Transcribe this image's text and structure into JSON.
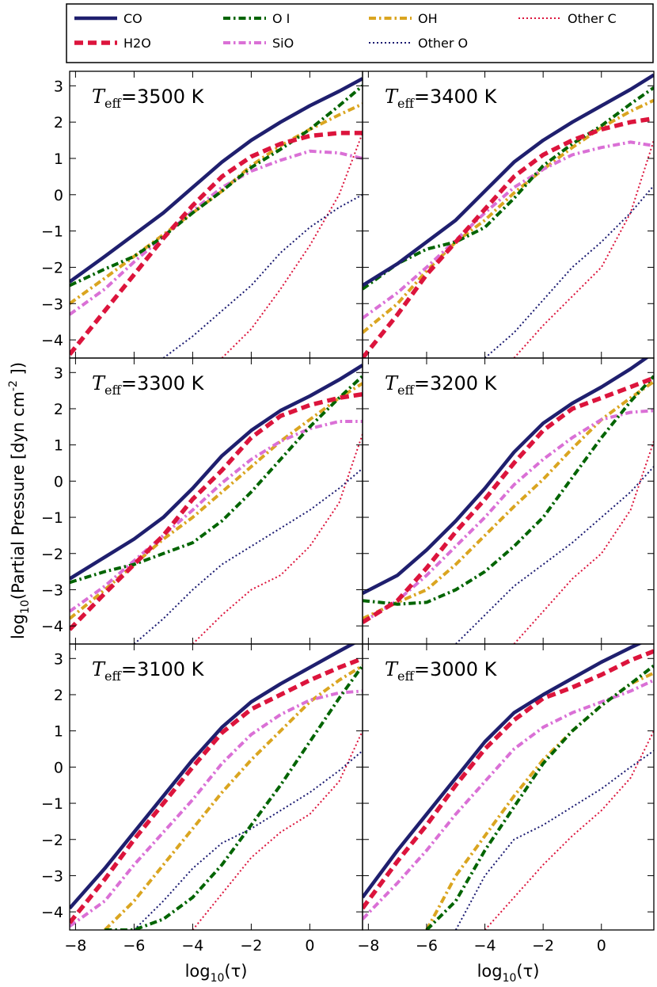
{
  "chart_data": {
    "type": "line",
    "ylabel": "log10(Partial Pressure [dyn cm-2 ])",
    "ylabel_parts": {
      "pre": "log",
      "sub": "10",
      "mid": "(Partial Pressure [dyn cm",
      "sup": "-2",
      "post": " ])"
    },
    "xlabel": "log10(τ)",
    "xlabel_parts": {
      "pre": "log",
      "sub": "10",
      "post": "(τ)"
    },
    "xlim": [
      -8.2,
      1.8
    ],
    "ylim": [
      -4.5,
      3.4
    ],
    "xticks": [
      -8,
      -6,
      -4,
      -2,
      0
    ],
    "yticks": [
      -4,
      -3,
      -2,
      -1,
      0,
      1,
      2,
      3
    ],
    "legend": {
      "placement": "top",
      "entries": [
        {
          "name": "CO",
          "color": "#1f1f6e",
          "style": "solid"
        },
        {
          "name": "H2O",
          "color": "#dc143c",
          "style": "dashed"
        },
        {
          "name": "O I",
          "color": "#006400",
          "style": "dashdot"
        },
        {
          "name": "SiO",
          "color": "#da70d6",
          "style": "dashdot"
        },
        {
          "name": "OH",
          "color": "#daa520",
          "style": "dashdot"
        },
        {
          "name": "Other O",
          "color": "#191970",
          "style": "dotted"
        },
        {
          "name": "Other C",
          "color": "#dc143c",
          "style": "dotted"
        }
      ]
    },
    "x": [
      -8.2,
      -7,
      -6,
      -5,
      -4,
      -3,
      -2,
      -1,
      0,
      1,
      1.8
    ],
    "panels": [
      {
        "title_sym": "T",
        "title_sub": "eff",
        "title_val": "=3500 K",
        "series": {
          "CO": [
            -2.4,
            -1.7,
            -1.1,
            -0.5,
            0.2,
            0.9,
            1.5,
            2.0,
            2.45,
            2.85,
            3.2
          ],
          "H2O": [
            -4.4,
            -3.2,
            -2.2,
            -1.2,
            -0.3,
            0.5,
            1.05,
            1.4,
            1.62,
            1.7,
            1.7
          ],
          "O I": [
            -2.5,
            -2.05,
            -1.7,
            -1.15,
            -0.5,
            0.1,
            0.75,
            1.25,
            1.8,
            2.45,
            3.0
          ],
          "SiO": [
            -3.3,
            -2.6,
            -1.85,
            -1.15,
            -0.45,
            0.2,
            0.65,
            0.95,
            1.2,
            1.15,
            1.0
          ],
          "OH": [
            -3.0,
            -2.3,
            -1.7,
            -1.1,
            -0.5,
            0.1,
            0.8,
            1.35,
            1.8,
            2.2,
            2.5
          ],
          "Other O": [
            null,
            null,
            null,
            -4.5,
            -3.9,
            -3.2,
            -2.5,
            -1.6,
            -0.9,
            -0.35,
            0.0
          ],
          "Other C": [
            null,
            null,
            null,
            null,
            null,
            -4.5,
            -3.7,
            -2.6,
            -1.4,
            0.0,
            1.7
          ]
        }
      },
      {
        "title_sym": "T",
        "title_sub": "eff",
        "title_val": "=3400 K",
        "series": {
          "CO": [
            -2.5,
            -1.9,
            -1.3,
            -0.7,
            0.1,
            0.9,
            1.5,
            2.0,
            2.45,
            2.9,
            3.3
          ],
          "H2O": [
            -4.5,
            -3.3,
            -2.2,
            -1.3,
            -0.4,
            0.5,
            1.1,
            1.5,
            1.8,
            2.0,
            2.1
          ],
          "O I": [
            -2.6,
            -1.9,
            -1.5,
            -1.3,
            -0.9,
            -0.1,
            0.8,
            1.4,
            1.9,
            2.5,
            2.95
          ],
          "SiO": [
            -3.4,
            -2.7,
            -2.0,
            -1.25,
            -0.5,
            0.2,
            0.7,
            1.1,
            1.3,
            1.45,
            1.35
          ],
          "OH": [
            -3.8,
            -3.0,
            -2.1,
            -1.3,
            -0.7,
            0.05,
            0.7,
            1.3,
            1.85,
            2.3,
            2.6
          ],
          "Other O": [
            null,
            null,
            null,
            null,
            -4.5,
            -3.8,
            -2.9,
            -2.0,
            -1.3,
            -0.5,
            0.25
          ],
          "Other C": [
            null,
            null,
            null,
            null,
            null,
            -4.5,
            -3.6,
            -2.8,
            -2.0,
            -0.5,
            1.5
          ]
        }
      },
      {
        "title_sym": "T",
        "title_sub": "eff",
        "title_val": "=3300 K",
        "series": {
          "CO": [
            -2.7,
            -2.1,
            -1.6,
            -1.0,
            -0.2,
            0.7,
            1.4,
            1.95,
            2.35,
            2.8,
            3.2
          ],
          "H2O": [
            -4.1,
            -3.1,
            -2.3,
            -1.5,
            -0.5,
            0.3,
            1.2,
            1.8,
            2.1,
            2.3,
            2.4
          ],
          "O I": [
            -2.8,
            -2.5,
            -2.3,
            -2.0,
            -1.7,
            -1.1,
            -0.3,
            0.6,
            1.5,
            2.3,
            2.9
          ],
          "SiO": [
            -3.6,
            -2.9,
            -2.2,
            -1.5,
            -0.8,
            -0.05,
            0.6,
            1.1,
            1.45,
            1.65,
            1.65
          ],
          "OH": [
            -3.8,
            -3.0,
            -2.3,
            -1.6,
            -1.0,
            -0.3,
            0.4,
            1.1,
            1.7,
            2.3,
            2.7
          ],
          "Other O": [
            null,
            null,
            -4.5,
            -3.8,
            -3.0,
            -2.3,
            -1.8,
            -1.3,
            -0.8,
            -0.2,
            0.35
          ],
          "Other C": [
            null,
            null,
            null,
            null,
            -4.5,
            -3.7,
            -3.0,
            -2.6,
            -1.8,
            -0.6,
            1.3
          ]
        }
      },
      {
        "title_sym": "T",
        "title_sub": "eff",
        "title_val": "=3200 K",
        "series": {
          "CO": [
            -3.1,
            -2.6,
            -1.9,
            -1.1,
            -0.2,
            0.8,
            1.6,
            2.15,
            2.6,
            3.1,
            3.55
          ],
          "H2O": [
            -3.9,
            -3.3,
            -2.4,
            -1.4,
            -0.5,
            0.5,
            1.4,
            2.0,
            2.3,
            2.6,
            2.85
          ],
          "O I": [
            -3.3,
            -3.4,
            -3.35,
            -3.0,
            -2.5,
            -1.8,
            -1.0,
            0.1,
            1.2,
            2.2,
            2.9
          ],
          "SiO": [
            -3.9,
            -3.3,
            -2.6,
            -1.8,
            -1.0,
            -0.1,
            0.6,
            1.2,
            1.7,
            1.9,
            1.95
          ],
          "OH": [
            -3.8,
            -3.35,
            -3.0,
            -2.3,
            -1.5,
            -0.7,
            0.05,
            0.9,
            1.7,
            2.3,
            2.75
          ],
          "Other O": [
            null,
            null,
            null,
            -4.5,
            -3.7,
            -2.9,
            -2.3,
            -1.7,
            -1.0,
            -0.3,
            0.4
          ],
          "Other C": [
            null,
            null,
            null,
            null,
            null,
            -4.5,
            -3.6,
            -2.7,
            -2.0,
            -0.8,
            1.1
          ]
        }
      },
      {
        "title_sym": "T",
        "title_sub": "eff",
        "title_val": "=3100 K",
        "series": {
          "CO": [
            -3.9,
            -2.8,
            -1.8,
            -0.8,
            0.2,
            1.1,
            1.8,
            2.3,
            2.75,
            3.2,
            3.55
          ],
          "H2O": [
            -4.3,
            -3.1,
            -2.0,
            -1.0,
            0.0,
            0.95,
            1.6,
            2.0,
            2.4,
            2.75,
            3.0
          ],
          "O I": [
            null,
            -4.5,
            -4.5,
            -4.2,
            -3.6,
            -2.7,
            -1.6,
            -0.5,
            0.7,
            1.9,
            2.8
          ],
          "SiO": [
            -4.4,
            -3.7,
            -2.7,
            -1.8,
            -0.9,
            0.1,
            0.9,
            1.45,
            1.85,
            2.05,
            2.1
          ],
          "OH": [
            null,
            -4.5,
            -3.7,
            -2.7,
            -1.7,
            -0.7,
            0.2,
            1.0,
            1.8,
            2.4,
            2.8
          ],
          "Other O": [
            null,
            null,
            -4.5,
            -3.7,
            -2.8,
            -2.1,
            -1.7,
            -1.2,
            -0.7,
            -0.1,
            0.45
          ],
          "Other C": [
            null,
            null,
            null,
            null,
            -4.5,
            -3.5,
            -2.5,
            -1.8,
            -1.3,
            -0.4,
            1.0
          ]
        }
      },
      {
        "title_sym": "T",
        "title_sub": "eff",
        "title_val": "=3000 K",
        "series": {
          "CO": [
            -3.6,
            -2.3,
            -1.3,
            -0.3,
            0.7,
            1.5,
            2.0,
            2.45,
            2.9,
            3.3,
            3.6
          ],
          "H2O": [
            -3.9,
            -2.6,
            -1.6,
            -0.5,
            0.5,
            1.3,
            1.9,
            2.2,
            2.55,
            2.95,
            3.2
          ],
          "O I": [
            null,
            null,
            -4.5,
            -3.7,
            -2.3,
            -1.1,
            0.1,
            1.0,
            1.7,
            2.3,
            2.8
          ],
          "SiO": [
            -4.2,
            -3.2,
            -2.3,
            -1.3,
            -0.4,
            0.5,
            1.1,
            1.5,
            1.8,
            2.1,
            2.4
          ],
          "OH": [
            null,
            null,
            -4.5,
            -3.0,
            -1.9,
            -0.8,
            0.2,
            1.0,
            1.7,
            2.3,
            2.6
          ],
          "Other O": [
            null,
            null,
            null,
            -4.5,
            -3.0,
            -2.0,
            -1.6,
            -1.1,
            -0.6,
            0.0,
            0.45
          ],
          "Other C": [
            null,
            null,
            null,
            null,
            -4.5,
            -3.6,
            -2.7,
            -1.9,
            -1.2,
            -0.3,
            1.0
          ]
        }
      }
    ]
  }
}
